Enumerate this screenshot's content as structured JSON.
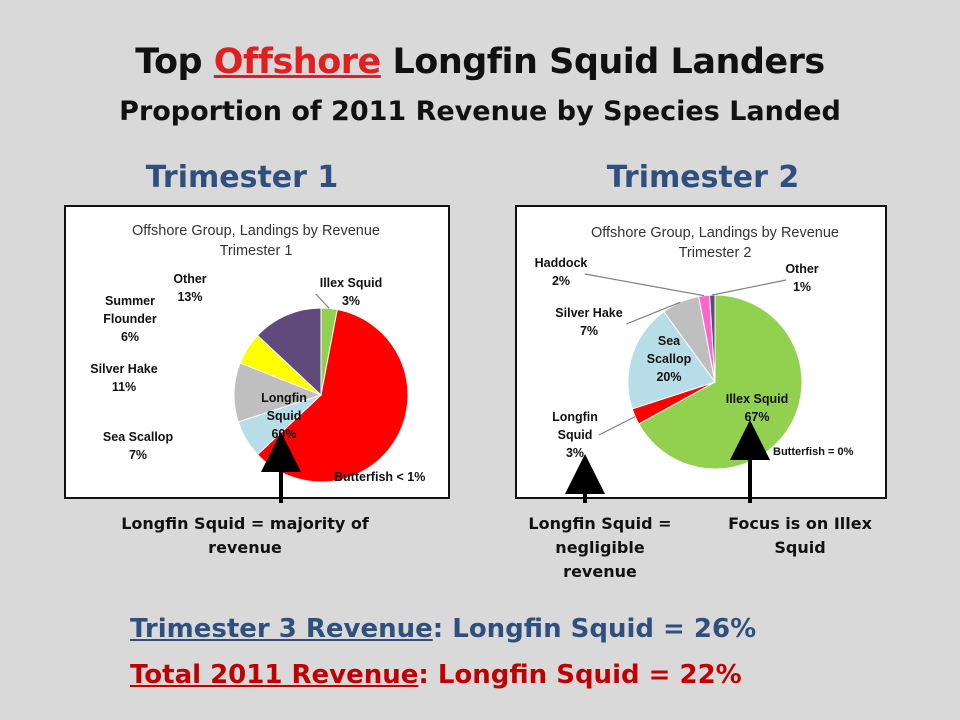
{
  "title": {
    "prefix": "Top",
    "highlight": "Offshore",
    "suffix": "Longfin Squid Landers",
    "subtitle": "Proportion of 2011 Revenue by Species Landed"
  },
  "panels": [
    {
      "heading": "Trimester 1",
      "caption": "Longfin Squid = majority of revenue"
    },
    {
      "heading": "Trimester 2",
      "caption_left": "Longfin Squid = negligible revenue",
      "caption_right": "Focus is on Illex Squid"
    }
  ],
  "bottom": [
    {
      "label": "Trimester 3 Revenue",
      "rest": ": Longfin Squid = 26%",
      "color": "#2f4f7f"
    },
    {
      "label": "Total 2011 Revenue",
      "rest": ": Longfin Squid = 22%",
      "color": "#c00000"
    }
  ],
  "chart_data": [
    {
      "type": "pie",
      "title": "Offshore Group, Landings by Revenue",
      "subtitle": "Trimester 1",
      "note": "Butterfish < 1%",
      "slices": [
        {
          "label": "Illex Squid",
          "value": 3,
          "display": "3%",
          "color": "#92d050"
        },
        {
          "label": "Longfin Squid",
          "value": 60,
          "display": "60%",
          "color": "#ff0000"
        },
        {
          "label": "Sea Scallop",
          "value": 7,
          "display": "7%",
          "color": "#b7dde8"
        },
        {
          "label": "Silver Hake",
          "value": 11,
          "display": "11%",
          "color": "#bfbfbf"
        },
        {
          "label": "Summer Flounder",
          "value": 6,
          "display": "6%",
          "color": "#ffff00"
        },
        {
          "label": "Other",
          "value": 13,
          "display": "13%",
          "color": "#604a7b"
        }
      ]
    },
    {
      "type": "pie",
      "title": "Offshore Group, Landings by Revenue",
      "subtitle": "Trimester 2",
      "note": "Butterfish = 0%",
      "slices": [
        {
          "label": "Illex Squid",
          "value": 67,
          "display": "67%",
          "color": "#92d050"
        },
        {
          "label": "Longfin Squid",
          "value": 3,
          "display": "3%",
          "color": "#ff0000"
        },
        {
          "label": "Sea Scallop",
          "value": 20,
          "display": "20%",
          "color": "#b7dde8"
        },
        {
          "label": "Silver Hake",
          "value": 7,
          "display": "7%",
          "color": "#bfbfbf"
        },
        {
          "label": "Haddock",
          "value": 2,
          "display": "2%",
          "color": "#ff66cc"
        },
        {
          "label": "Other",
          "value": 1,
          "display": "1%",
          "color": "#604a7b"
        }
      ]
    }
  ]
}
